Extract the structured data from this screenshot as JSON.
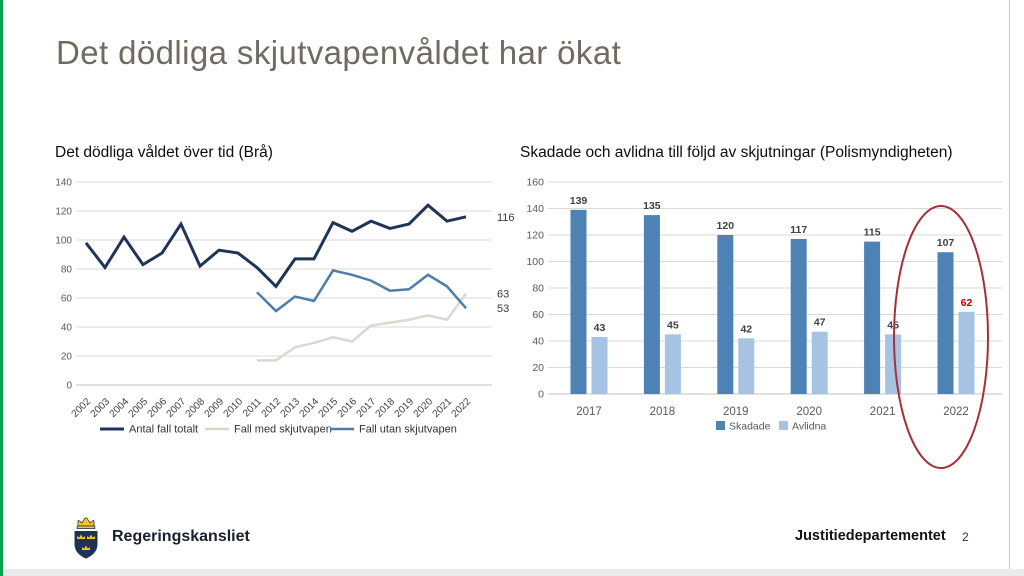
{
  "slide": {
    "title": "Det dödliga skjutvapenvåldet har ökat",
    "page_number": "2",
    "accent_color": "#00a34f",
    "footer": {
      "org": "Regeringskansliet",
      "department": "Justitiedepartementet"
    }
  },
  "chart_data": [
    {
      "type": "line",
      "title": "Det dödliga våldet över tid (Brå)",
      "x": [
        "2002",
        "2003",
        "2004",
        "2005",
        "2006",
        "2007",
        "2008",
        "2009",
        "2010",
        "2011",
        "2012",
        "2013",
        "2014",
        "2015",
        "2016",
        "2017",
        "2018",
        "2019",
        "2020",
        "2021",
        "2022"
      ],
      "series": [
        {
          "name": "Antal fall totalt",
          "color": "#1f3557",
          "values": [
            98,
            81,
            102,
            83,
            91,
            111,
            82,
            93,
            91,
            81,
            68,
            87,
            87,
            112,
            106,
            113,
            108,
            111,
            124,
            113,
            116
          ]
        },
        {
          "name": "Fall med skjutvapen",
          "color": "#d9d9d0",
          "values": [
            null,
            null,
            null,
            null,
            null,
            null,
            null,
            null,
            null,
            17,
            17,
            26,
            29,
            33,
            30,
            41,
            43,
            45,
            48,
            45,
            63
          ]
        },
        {
          "name": "Fall utan skjutvapen",
          "color": "#4d7da8",
          "values": [
            null,
            null,
            null,
            null,
            null,
            null,
            null,
            null,
            null,
            64,
            51,
            61,
            58,
            79,
            76,
            72,
            65,
            66,
            76,
            68,
            53
          ]
        }
      ],
      "end_labels": [
        "116",
        "63",
        "53"
      ],
      "ylim": [
        0,
        140
      ],
      "ytick_step": 20,
      "grid": true,
      "legend_position": "bottom"
    },
    {
      "type": "bar",
      "title": "Skadade och avlidna till följd av skjutningar (Polismyndigheten)",
      "categories": [
        "2017",
        "2018",
        "2019",
        "2020",
        "2021",
        "2022"
      ],
      "series": [
        {
          "name": "Skadade",
          "color": "#4d82b4",
          "values": [
            139,
            135,
            120,
            117,
            115,
            107
          ]
        },
        {
          "name": "Avlidna",
          "color": "#a6c3e3",
          "values": [
            43,
            45,
            42,
            47,
            45,
            62
          ]
        }
      ],
      "ylim": [
        0,
        160
      ],
      "ytick_step": 20,
      "grid": true,
      "legend_position": "bottom",
      "highlight": {
        "category": "2022",
        "series": "Avlidna",
        "label_color": "#c00000",
        "ellipse_color": "#a43137"
      }
    }
  ]
}
